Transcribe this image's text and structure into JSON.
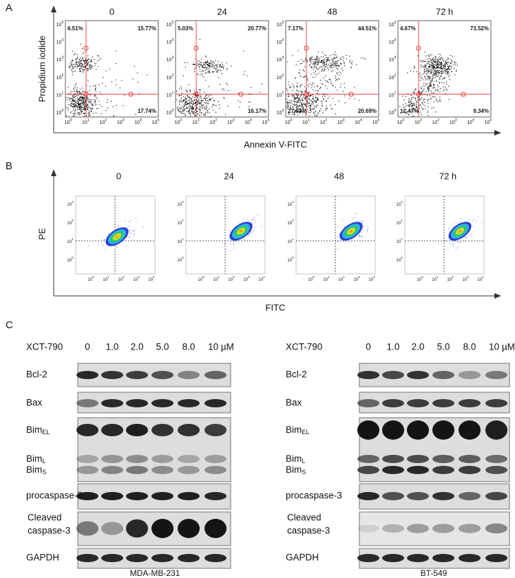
{
  "panel_a": {
    "label": "A",
    "times": [
      "0",
      "24",
      "48",
      "72 h"
    ],
    "y_label": "Propidium iodide",
    "x_label": "Annexin V-FITC",
    "tick_base": "10",
    "x_tick_exponents": [
      "0",
      "1",
      "2",
      "3",
      "4",
      "5"
    ],
    "y_tick_exponents": [
      "0",
      "1",
      "2",
      "3",
      "4",
      "5"
    ],
    "plots": [
      {
        "ul": "6.51%",
        "ur": "15.77%",
        "lr": "17.74%"
      },
      {
        "ul": "5.03%",
        "ur": "20.77%",
        "lr": "16.17%"
      },
      {
        "ul": "7.17%",
        "ur": "44.51%",
        "ll": "27.63%",
        "lr": "20.69%"
      },
      {
        "ul": "4.67%",
        "ur": "73.52%",
        "ll": "12.47%",
        "lr": "9.34%"
      }
    ]
  },
  "panel_b": {
    "label": "B",
    "times": [
      "0",
      "24",
      "48",
      "72 h"
    ],
    "y_label": "PE",
    "x_label": "FITC",
    "tick_base": "10",
    "x_tick_exponents": [
      "0",
      "1",
      "2",
      "3",
      "4"
    ],
    "y_tick_exponents": [
      "0",
      "1",
      "2",
      "3"
    ]
  },
  "panel_c": {
    "label": "C",
    "blots": [
      {
        "cell_line": "MDA-MB-231",
        "treatment": "XCT-790",
        "concentrations": [
          "0",
          "1.0",
          "2.0",
          "5.0",
          "8.0",
          "10 µM"
        ],
        "rows": [
          {
            "lines": [
              "Bcl-2"
            ]
          },
          {
            "lines": [
              "Bax"
            ]
          },
          {
            "lines": [
              "Bim"
            ],
            "sub": "EL"
          },
          {
            "lines": [
              "Bim"
            ],
            "sub": "L"
          },
          {
            "lines": [
              "Bim"
            ],
            "sub": "S"
          },
          {
            "lines": [
              "procaspase-3"
            ]
          },
          {
            "lines": [
              "Cleaved",
              "caspase-3"
            ]
          },
          {
            "lines": [
              "GAPDH"
            ]
          }
        ]
      },
      {
        "cell_line": "BT-549",
        "treatment": "XCT-790",
        "concentrations": [
          "0",
          "1.0",
          "2.0",
          "5.0",
          "8.0",
          "10 µM"
        ],
        "rows": [
          {
            "lines": [
              "Bcl-2"
            ]
          },
          {
            "lines": [
              "Bax"
            ]
          },
          {
            "lines": [
              "Bim"
            ],
            "sub": "EL"
          },
          {
            "lines": [
              "Bim"
            ],
            "sub": "L"
          },
          {
            "lines": [
              "Bim"
            ],
            "sub": "S"
          },
          {
            "lines": [
              "procaspase-3"
            ]
          },
          {
            "lines": [
              "Cleaved",
              "caspase-3"
            ]
          },
          {
            "lines": [
              "GAPDH"
            ]
          }
        ]
      }
    ]
  }
}
